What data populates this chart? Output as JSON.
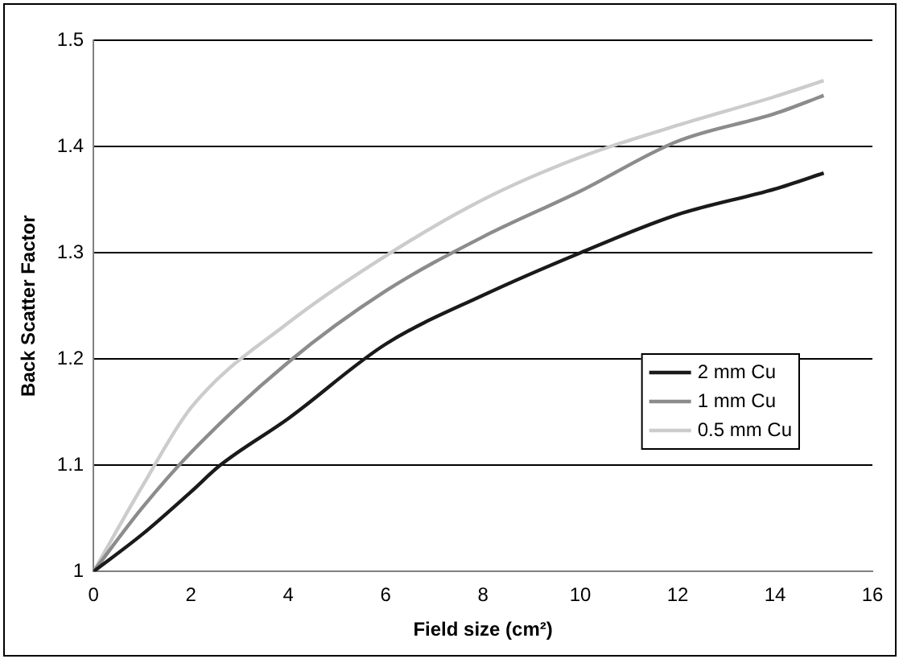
{
  "chart_data": {
    "type": "line",
    "xlabel": "Field size (cm²)",
    "ylabel": "Back Scatter Factor",
    "xlim": [
      0,
      16
    ],
    "xticks": [
      0,
      2,
      4,
      6,
      8,
      10,
      12,
      14,
      16
    ],
    "ylim": [
      1,
      1.5
    ],
    "yticks": [
      1,
      1.1,
      1.2,
      1.3,
      1.4,
      1.5
    ],
    "grid": "y",
    "legend": "right",
    "marker": "none",
    "line_style": "solid",
    "series": [
      {
        "name": "2 mm Cu",
        "color": "#1a1a1a",
        "x": [
          0,
          1,
          2,
          2.6,
          4,
          6,
          8,
          10,
          12,
          14,
          15
        ],
        "values": [
          1,
          1.035,
          1.075,
          1.1,
          1.144,
          1.214,
          1.26,
          1.3,
          1.336,
          1.36,
          1.375
        ]
      },
      {
        "name": "1 mm Cu",
        "color": "#8c8c8c",
        "x": [
          0,
          1,
          2,
          4,
          6,
          8,
          10,
          12,
          14,
          15
        ],
        "values": [
          1,
          1.06,
          1.112,
          1.197,
          1.264,
          1.315,
          1.358,
          1.405,
          1.431,
          1.448
        ]
      },
      {
        "name": "0.5 mm Cu",
        "color": "#cccccc",
        "x": [
          0,
          1,
          2,
          4,
          6,
          8,
          10,
          12,
          14,
          15
        ],
        "values": [
          1,
          1.08,
          1.154,
          1.234,
          1.297,
          1.35,
          1.39,
          1.42,
          1.447,
          1.462
        ]
      }
    ]
  }
}
